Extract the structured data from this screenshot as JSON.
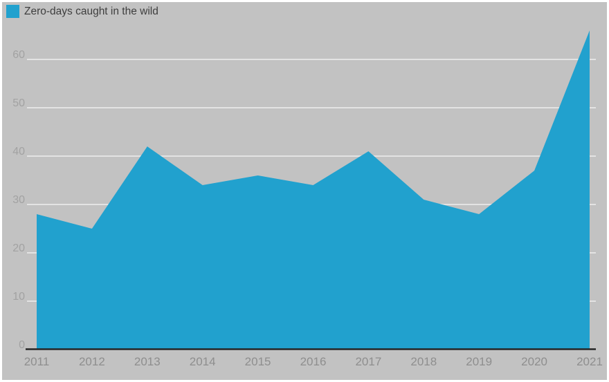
{
  "legend": {
    "label": "Zero-days caught in the wild"
  },
  "colors": {
    "series": "#21a1ce",
    "panel_bg": "#c2c2c2",
    "gridline": "#e3e3e3",
    "axis_line": "#262626",
    "x_tick_color": "#8e8e8e",
    "y_tick_color": "#a2a2a2",
    "legend_text": "#3e3e3e"
  },
  "chart_data": {
    "type": "area",
    "title": "",
    "xlabel": "",
    "ylabel": "",
    "categories": [
      "2011",
      "2012",
      "2013",
      "2014",
      "2015",
      "2016",
      "2017",
      "2018",
      "2019",
      "2020",
      "2021"
    ],
    "series": [
      {
        "name": "Zero-days caught in the wild",
        "values": [
          28,
          25,
          42,
          34,
          36,
          34,
          41,
          31,
          28,
          37,
          66
        ]
      }
    ],
    "ylim": [
      0,
      66
    ],
    "y_ticks": [
      0,
      10,
      20,
      30,
      40,
      50,
      60
    ],
    "grid": true,
    "legend_position": "top-left"
  }
}
